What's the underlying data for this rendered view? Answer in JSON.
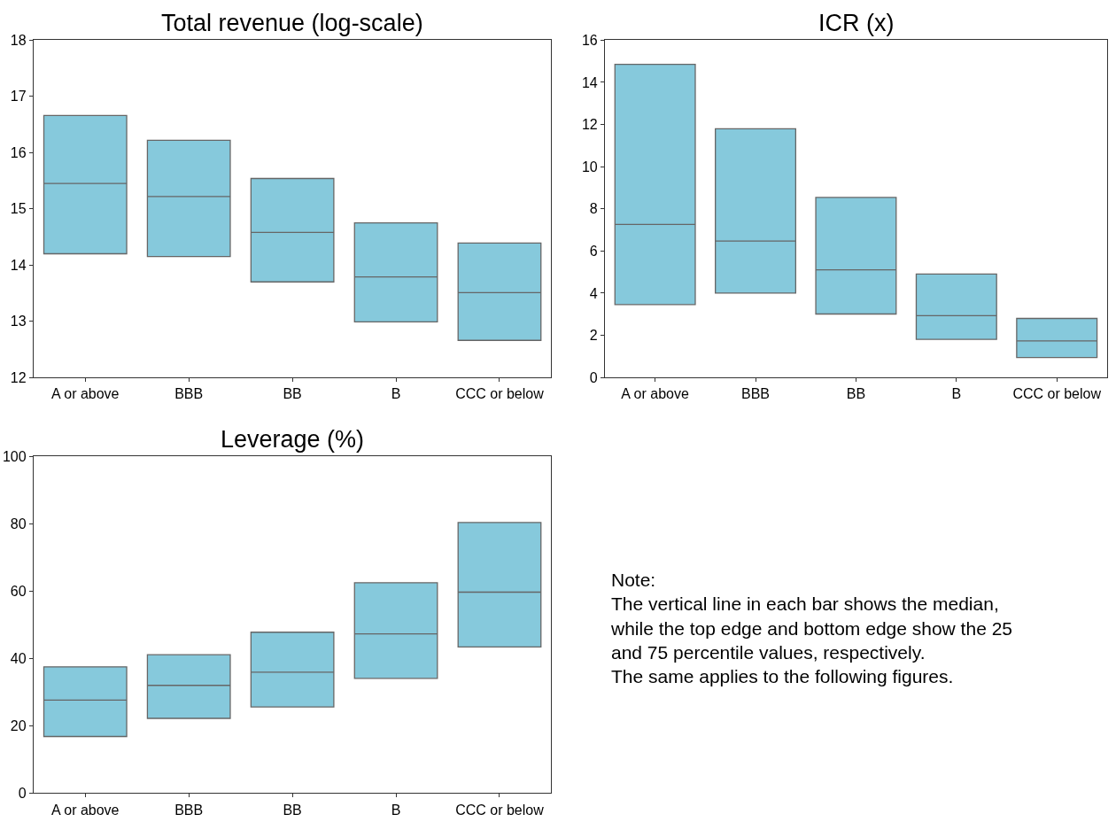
{
  "chart_data": [
    {
      "type": "box",
      "title": "Total revenue (log-scale)",
      "categories": [
        "A or above",
        "BBB",
        "BB",
        "B",
        "CCC or below"
      ],
      "color": "#86c9dc",
      "ylim": [
        12,
        18
      ],
      "yticks": [
        12,
        13,
        14,
        15,
        16,
        17,
        18
      ],
      "boxes": [
        {
          "low": 14.2,
          "q1": 14.2,
          "median": 15.45,
          "q3": 16.66,
          "high": 16.66
        },
        {
          "low": 14.15,
          "q1": 14.15,
          "median": 15.22,
          "q3": 16.22,
          "high": 16.22
        },
        {
          "low": 13.7,
          "q1": 13.7,
          "median": 14.58,
          "q3": 15.54,
          "high": 15.54
        },
        {
          "low": 12.99,
          "q1": 12.99,
          "median": 13.79,
          "q3": 14.75,
          "high": 14.75
        },
        {
          "low": 12.66,
          "q1": 12.66,
          "median": 13.51,
          "q3": 14.39,
          "high": 14.39
        }
      ]
    },
    {
      "type": "box",
      "title": "ICR (x)",
      "categories": [
        "A or above",
        "BBB",
        "BB",
        "B",
        "CCC or below"
      ],
      "color": "#86c9dc",
      "ylim": [
        0,
        16
      ],
      "yticks": [
        0,
        2,
        4,
        6,
        8,
        10,
        12,
        14,
        16
      ],
      "boxes": [
        {
          "low": 3.46,
          "q1": 3.46,
          "median": 7.26,
          "q3": 14.85,
          "high": 14.85
        },
        {
          "low": 4.0,
          "q1": 4.0,
          "median": 6.47,
          "q3": 11.8,
          "high": 11.8
        },
        {
          "low": 3.01,
          "q1": 3.01,
          "median": 5.11,
          "q3": 8.54,
          "high": 8.54
        },
        {
          "low": 1.81,
          "q1": 1.81,
          "median": 2.93,
          "q3": 4.91,
          "high": 4.91
        },
        {
          "low": 0.95,
          "q1": 0.95,
          "median": 1.73,
          "q3": 2.8,
          "high": 2.8
        }
      ]
    },
    {
      "type": "box",
      "title": "Leverage (%)",
      "categories": [
        "A or above",
        "BBB",
        "BB",
        "B",
        "CCC or below"
      ],
      "color": "#86c9dc",
      "ylim": [
        0,
        100
      ],
      "yticks": [
        0,
        20,
        40,
        60,
        80,
        100
      ],
      "boxes": [
        {
          "low": 16.8,
          "q1": 16.8,
          "median": 27.6,
          "q3": 37.5,
          "high": 37.5
        },
        {
          "low": 22.2,
          "q1": 22.2,
          "median": 32.0,
          "q3": 41.1,
          "high": 41.1
        },
        {
          "low": 25.6,
          "q1": 25.6,
          "median": 35.9,
          "q3": 47.8,
          "high": 47.8
        },
        {
          "low": 34.1,
          "q1": 34.1,
          "median": 47.3,
          "q3": 62.5,
          "high": 62.5
        },
        {
          "low": 43.4,
          "q1": 43.4,
          "median": 59.7,
          "q3": 80.4,
          "high": 80.4
        }
      ]
    },
    {
      "type": "other",
      "annotations": [
        "Note:\nThe vertical line in each bar shows the median,\nwhile the top edge and bottom edge show the 25\nand 75 percentile values, respectively.\nThe same applies to the following figures."
      ]
    }
  ]
}
